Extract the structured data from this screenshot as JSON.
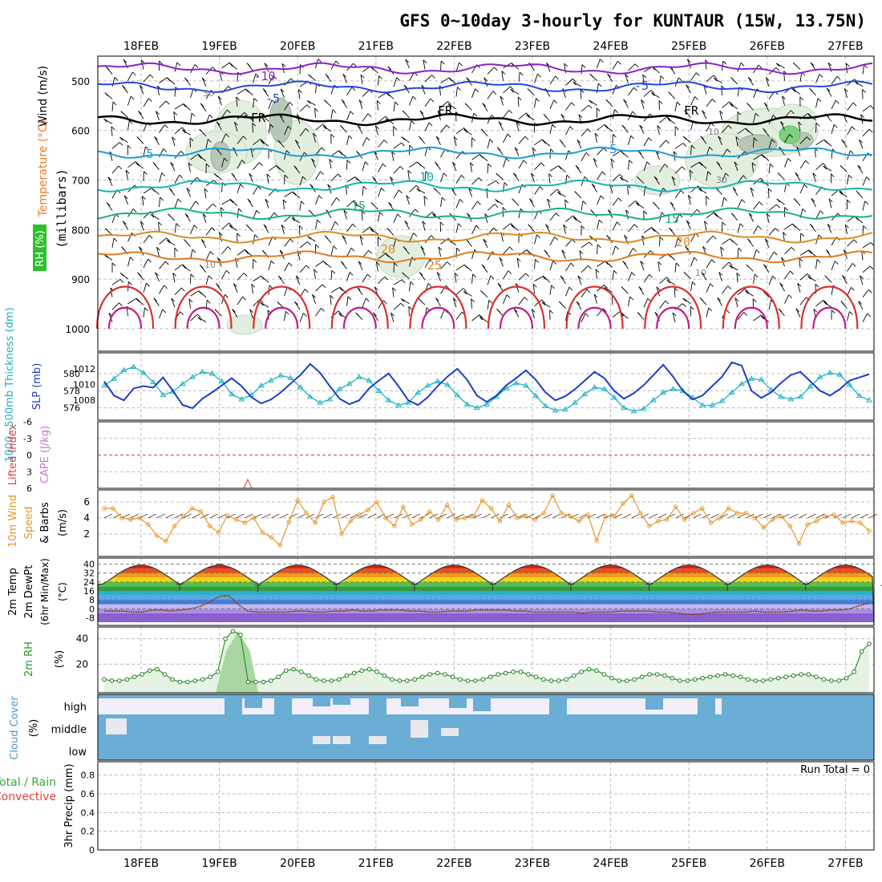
{
  "chart_data": {
    "title": "GFS 0~10day 3-hourly for KUNTAUR (15W, 13.75N)",
    "type": "line",
    "days": [
      "18FEB",
      "19FEB",
      "20FEB",
      "21FEB",
      "22FEB",
      "23FEB",
      "24FEB",
      "25FEB",
      "26FEB",
      "27FEB"
    ],
    "panels": {
      "upper": {
        "ylabel_wind": "Wind (m/s)",
        "ylabel_temp": "Temperature (°C)",
        "ylabel_rh": "RH (%)",
        "ylabel_pressure": "(millibars)",
        "yticks": [
          "500",
          "600",
          "700",
          "800",
          "900",
          "1000"
        ],
        "isotherm_labels": [
          "-10",
          "-5",
          "-5",
          "FR",
          "FR",
          "FR",
          "5",
          "5",
          "10",
          "15",
          "15",
          "20",
          "20",
          "25"
        ],
        "rh_labels": [
          "10",
          "30",
          "10",
          "10",
          "30"
        ],
        "isotherms_c": [
          -10,
          -5,
          0,
          5,
          10,
          15,
          20,
          25
        ],
        "isotherm_pressures_mb": [
          475,
          512,
          578,
          645,
          712,
          768,
          815,
          855
        ]
      },
      "thickness": {
        "ylabel_thick": "1000~500mb Thickness (dm)",
        "ylabel_slp": "SLP (mb)",
        "thick_ticks": [
          "580",
          "578",
          "576"
        ],
        "slp_ticks": [
          "1012",
          "1010",
          "1008"
        ],
        "thickness_dm": [
          578.6,
          579.4,
          580.4,
          580.8,
          580.1,
          579.0,
          577.5,
          577.9,
          578.8,
          579.6,
          580.2,
          580.0,
          579.1,
          577.6,
          577.0,
          577.5,
          578.6,
          579.2,
          579.8,
          579.5,
          578.4,
          577.3,
          576.6,
          577.0,
          578.2,
          578.8,
          579.6,
          579.2,
          578.0,
          576.9,
          576.3,
          576.6,
          577.8,
          578.6,
          579.1,
          578.7,
          577.5,
          576.4,
          576.0,
          576.4,
          577.3,
          578.3,
          578.9,
          578.6,
          577.4,
          576.2,
          575.7,
          575.8,
          576.6,
          577.6,
          578.4,
          578.2,
          577.2,
          576.0,
          575.6,
          575.9,
          576.9,
          577.8,
          578.2,
          578.0,
          577.2,
          576.3,
          576.3,
          576.8,
          577.8,
          578.8,
          579.4,
          579.3,
          578.1,
          577.3,
          577.0,
          577.3,
          578.5,
          579.6,
          580.1,
          579.9,
          578.7,
          577.4,
          576.9
        ],
        "slp_mb": [
          1010.4,
          1008.6,
          1008.0,
          1009.5,
          1009.8,
          1009.6,
          1010.9,
          1009.2,
          1007.4,
          1007.0,
          1008.2,
          1009.0,
          1009.9,
          1010.8,
          1009.8,
          1008.4,
          1007.6,
          1008.1,
          1009.0,
          1010.1,
          1011.2,
          1012.6,
          1011.5,
          1009.8,
          1008.2,
          1007.5,
          1008.0,
          1009.5,
          1010.5,
          1011.4,
          1009.8,
          1008.0,
          1007.4,
          1008.4,
          1009.8,
          1011.0,
          1012.0,
          1010.6,
          1008.6,
          1007.8,
          1008.6,
          1009.9,
          1010.8,
          1011.8,
          1010.6,
          1009.0,
          1008.0,
          1008.5,
          1009.4,
          1010.5,
          1011.6,
          1010.8,
          1009.2,
          1008.2,
          1008.9,
          1009.9,
          1011.2,
          1012.5,
          1011.0,
          1009.2,
          1008.1,
          1008.6,
          1009.8,
          1011.0,
          1012.8,
          1012.4,
          1009.2,
          1008.3,
          1009.0,
          1010.2,
          1011.2,
          1011.6,
          1010.4,
          1009.2,
          1008.6,
          1009.4,
          1010.5,
          1010.9,
          1011.3
        ]
      },
      "cape": {
        "ylabel_li": "Lifted Index",
        "ylabel_cape": "CAPE (J/kg)",
        "yticks": [
          "-6",
          "-3",
          "0",
          "3",
          "6"
        ]
      },
      "wind10m": {
        "ylabel_a": "10m Wind",
        "ylabel_b": "Speed",
        "ylabel_c": "& Barbs",
        "ylabel_d": "(m/s)",
        "yticks": [
          "6",
          "4",
          "2"
        ],
        "speed_ms": [
          5.2,
          5.2,
          4.0,
          3.8,
          4.0,
          3.2,
          1.8,
          1.1,
          3.0,
          4.2,
          5.2,
          4.8,
          3.0,
          2.2,
          4.3,
          3.8,
          3.4,
          4.0,
          2.2,
          1.6,
          0.6,
          3.5,
          6.2,
          4.6,
          3.4,
          6.0,
          6.6,
          2.0,
          3.6,
          4.4,
          5.0,
          6.0,
          4.0,
          3.0,
          5.4,
          3.2,
          3.8,
          4.8,
          3.8,
          5.6,
          3.8,
          4.0,
          4.2,
          6.2,
          5.2,
          3.6,
          5.6,
          4.0,
          4.2,
          3.8,
          4.6,
          6.8,
          4.6,
          4.2,
          3.6,
          4.4,
          1.2,
          4.2,
          4.2,
          5.8,
          6.8,
          4.6,
          3.0,
          3.6,
          3.8,
          5.4,
          3.8,
          4.6,
          5.2,
          3.4,
          4.0,
          5.2,
          4.6,
          4.6,
          4.0,
          2.8,
          3.8,
          4.2,
          3.0,
          0.8,
          3.2,
          3.6,
          4.2,
          4.4,
          3.4,
          3.6,
          3.4,
          2.4
        ]
      },
      "temp2m": {
        "ylabel_a": "2m Temp",
        "ylabel_b": "2m DewPt",
        "ylabel_c": "(6hr Min/Max)",
        "ylabel_d": "(°C)",
        "yticks": [
          "40",
          "32",
          "24",
          "16",
          "8",
          "0",
          "-8"
        ],
        "temp_max_c": [
          39,
          40,
          39,
          39,
          39,
          39,
          39,
          39,
          39,
          39
        ],
        "temp_min_c": [
          22,
          21,
          22,
          22,
          22,
          22,
          22,
          22,
          22,
          21
        ],
        "dewpt_c": [
          -2,
          -2,
          -2,
          -3,
          -3,
          -1,
          -1,
          -2,
          -1,
          0,
          2,
          6,
          11,
          12,
          4,
          -2,
          -3,
          -3,
          -3,
          -3,
          -2,
          -2,
          -3,
          -3,
          -2,
          -2,
          -1,
          -2,
          -2,
          -1,
          -1,
          -1,
          -2,
          -2,
          -3,
          -3,
          -2,
          -2,
          -2,
          -1,
          -1,
          -1,
          -1,
          -2,
          -2,
          -3,
          -3,
          -3,
          -3,
          -3,
          -4,
          -3,
          -3,
          -3,
          -2,
          -2,
          -2,
          -2,
          -3,
          -3,
          -4,
          -5,
          -5,
          -4,
          -3,
          -3,
          -3,
          -3,
          -2,
          -3,
          -3,
          -3,
          -2,
          -1,
          -2,
          -2,
          -1,
          -1,
          0,
          3,
          5
        ]
      },
      "rh2m": {
        "ylabel_a": "2m RH",
        "ylabel_b": "(%)",
        "yticks": [
          "40",
          "20"
        ],
        "rh_pct": [
          8,
          7,
          7,
          8,
          10,
          12,
          15,
          16,
          12,
          8,
          6,
          6,
          7,
          8,
          10,
          14,
          40,
          46,
          43,
          6,
          6,
          6,
          7,
          10,
          15,
          16,
          14,
          11,
          8,
          7,
          7,
          8,
          11,
          13,
          15,
          16,
          14,
          11,
          8,
          7,
          7,
          8,
          10,
          12,
          13,
          12,
          10,
          8,
          7,
          7,
          8,
          10,
          12,
          13,
          14,
          14,
          12,
          10,
          8,
          7,
          7,
          8,
          11,
          14,
          16,
          15,
          12,
          9,
          7,
          7,
          8,
          10,
          12,
          12,
          11,
          9,
          7,
          7,
          8,
          9,
          10,
          11,
          12,
          11,
          10,
          8,
          7,
          7,
          8,
          9,
          10,
          11,
          12,
          12,
          10,
          8,
          7,
          7,
          9,
          14,
          30,
          36
        ]
      },
      "cloud": {
        "ylabel_a": "Cloud Cover",
        "ylabel_b": "(%)",
        "levels": [
          "high",
          "middle",
          "low"
        ]
      },
      "precip": {
        "ylabel_a": "Total / Rain",
        "ylabel_b": "Convective",
        "ylabel_c": "3hr Precip (mm)",
        "yticks": [
          "0.8",
          "0.6",
          "0.4",
          "0.2",
          "0"
        ],
        "run_total_label": "Run Total = 0",
        "precip_mm": [
          0,
          0,
          0,
          0,
          0,
          0,
          0,
          0,
          0,
          0
        ]
      }
    }
  },
  "colors": {
    "rh_green": "#2fbf2f",
    "temp_orange": "#f07a28",
    "wind_blue": "#3a52d0",
    "slp_blue": "#1e3ec8",
    "thickness_cyan": "#1fb2c4",
    "cape_violet": "#c876d8",
    "li_red": "#e04040",
    "cloud_blue": "#6aaed6",
    "wind_orange": "#e8962c"
  }
}
